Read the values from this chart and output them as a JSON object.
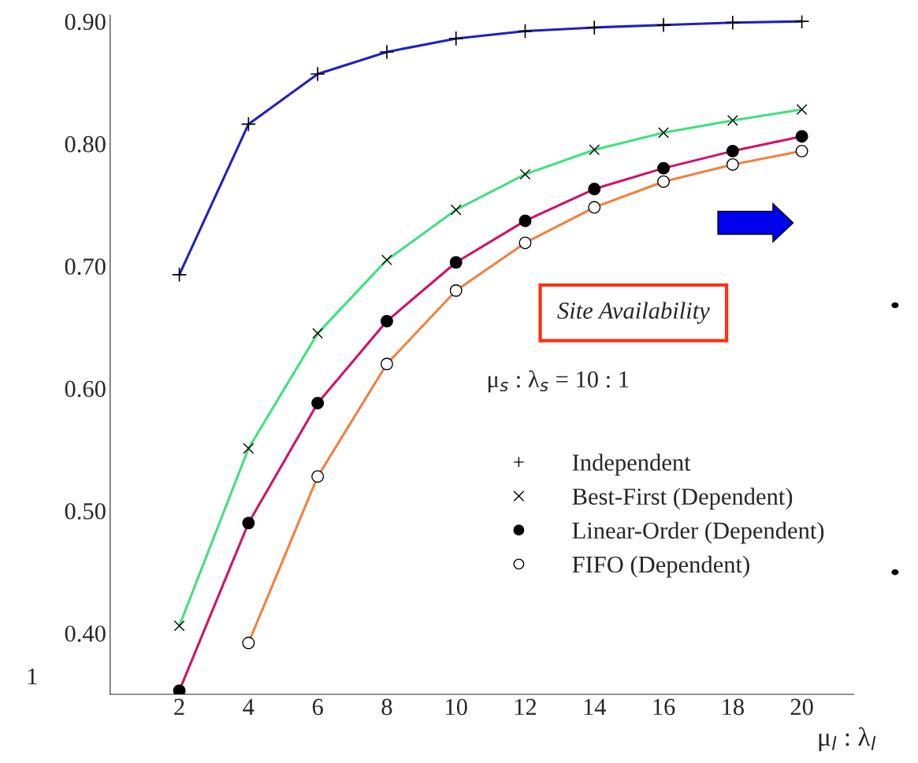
{
  "chart_data": {
    "type": "line",
    "xlabel": "μ$_{l}$ : λ$_{l}$",
    "x": [
      2,
      4,
      6,
      8,
      10,
      12,
      14,
      16,
      18,
      20
    ],
    "xlim": [
      0,
      21.5
    ],
    "xticks": [
      2,
      4,
      6,
      8,
      10,
      12,
      14,
      16,
      18,
      20
    ],
    "ylim": [
      0.35,
      0.905
    ],
    "yticks": [
      {
        "value": 0.4,
        "label": "0.40"
      },
      {
        "value": 0.5,
        "label": "0.50"
      },
      {
        "value": 0.6,
        "label": "0.60"
      },
      {
        "value": 0.7,
        "label": "0.70"
      },
      {
        "value": 0.8,
        "label": "0.80"
      },
      {
        "value": 0.9,
        "label": "0.90"
      }
    ],
    "series": [
      {
        "name": "Independent",
        "color": "#2020c0",
        "marker": "plus",
        "values": [
          0.693,
          0.816,
          0.857,
          0.875,
          0.886,
          0.892,
          0.895,
          0.897,
          0.899,
          0.9
        ]
      },
      {
        "name": "Best-First (Dependent)",
        "color": "#40e080",
        "marker": "cross",
        "values": [
          0.406,
          0.551,
          0.645,
          0.705,
          0.746,
          0.775,
          0.795,
          0.809,
          0.819,
          0.828
        ]
      },
      {
        "name": "Linear-Order (Dependent)",
        "color": "#d0106a",
        "marker": "circle",
        "values": [
          0.353,
          0.49,
          0.588,
          0.655,
          0.703,
          0.737,
          0.763,
          0.78,
          0.794,
          0.806
        ]
      },
      {
        "name": "FIFO (Dependent)",
        "color": "#f08040",
        "marker": "circle_open",
        "values": [
          null,
          0.392,
          0.528,
          0.62,
          0.68,
          0.719,
          0.748,
          0.769,
          0.783,
          0.794
        ]
      }
    ],
    "annotations": [
      "Site Availability",
      "μ$_{s}$ : λ$_{s}$ = 10 : 1",
      "1"
    ],
    "legend": "right",
    "grid": false
  }
}
